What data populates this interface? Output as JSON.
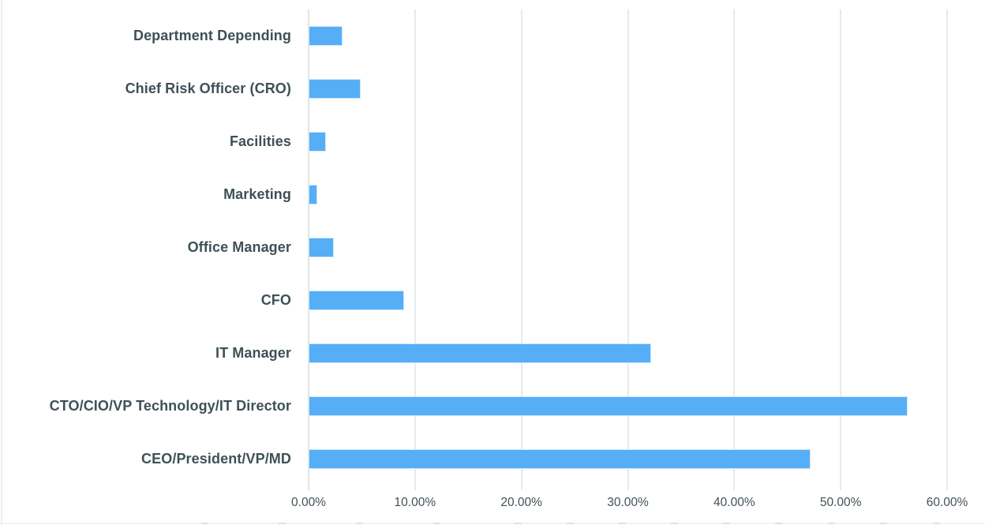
{
  "chart_data": {
    "type": "bar",
    "orientation": "horizontal",
    "title": "",
    "xlabel": "",
    "ylabel": "",
    "categories": [
      "Department Depending",
      "Chief Risk Officer (CRO)",
      "Facilities",
      "Marketing",
      "Office Manager",
      "CFO",
      "IT Manager",
      "CTO/CIO/VP Technology/IT Director",
      "CEO/President/VP/MD"
    ],
    "values": [
      3.2,
      4.9,
      1.6,
      0.8,
      2.4,
      9.0,
      32.2,
      56.3,
      47.2
    ],
    "value_unit": "%",
    "xlim": [
      0,
      60
    ],
    "x_tick_interval": 10,
    "x_tick_labels": [
      "0.00%",
      "10.00%",
      "20.00%",
      "30.00%",
      "40.00%",
      "50.00%",
      "60.00%"
    ],
    "grid": "vertical-only",
    "legend": "none",
    "colors": {
      "bar_fill": "#56aef7",
      "bar_border": "#cfe9fd",
      "gridline": "#e6ebeb",
      "category_label_text": "#3e5156",
      "axis_label_text": "#415257",
      "background": "#ffffff"
    }
  }
}
